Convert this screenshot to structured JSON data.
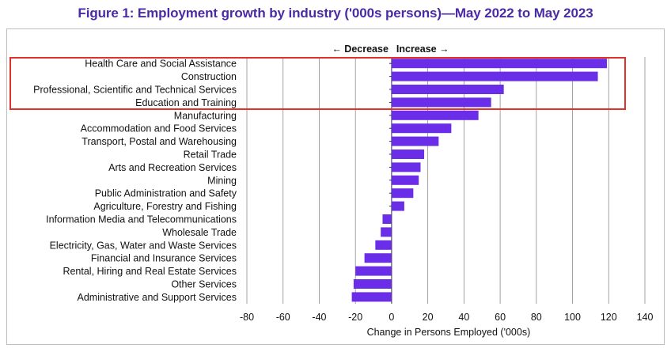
{
  "page": {
    "title": "Figure 1: Employment growth by industry ('000s persons)—May 2022 to May 2023"
  },
  "colors": {
    "bar": "#6a2ee8",
    "title": "#4b2aa6",
    "highlight": "#e4302a",
    "grid": "#8c8c8c"
  },
  "chart_data": {
    "type": "bar",
    "orientation": "horizontal",
    "title": "Figure 1: Employment growth by industry ('000s persons)—May 2022 to May 2023",
    "xlabel": "Change in Persons Employed ('000s)",
    "ylabel": "",
    "direction_left": "← Decrease",
    "direction_right": "Increase →",
    "xlim": [
      -80,
      140
    ],
    "xticks": [
      -80,
      -60,
      -40,
      -20,
      0,
      20,
      40,
      60,
      80,
      100,
      120,
      140
    ],
    "grid": true,
    "categories": [
      "Health Care and Social Assistance",
      "Construction",
      "Professional, Scientific and Technical Services",
      "Education and Training",
      "Manufacturing",
      "Accommodation and Food Services",
      "Transport, Postal and Warehousing",
      "Retail Trade",
      "Arts and Recreation Services",
      "Mining",
      "Public Administration and Safety",
      "Agriculture, Forestry and Fishing",
      "Information Media and Telecommunications",
      "Wholesale Trade",
      "Electricity, Gas, Water and Waste Services",
      "Financial and Insurance Services",
      "Rental, Hiring and Real Estate Services",
      "Other Services",
      "Administrative and Support Services"
    ],
    "values": [
      119,
      114,
      62,
      55,
      48,
      33,
      26,
      18,
      16,
      15,
      12,
      7,
      -5,
      -6,
      -9,
      -15,
      -20,
      -21,
      -22
    ],
    "highlighted_categories": [
      "Health Care and Social Assistance",
      "Construction",
      "Professional, Scientific and Technical Services",
      "Education and Training"
    ]
  }
}
